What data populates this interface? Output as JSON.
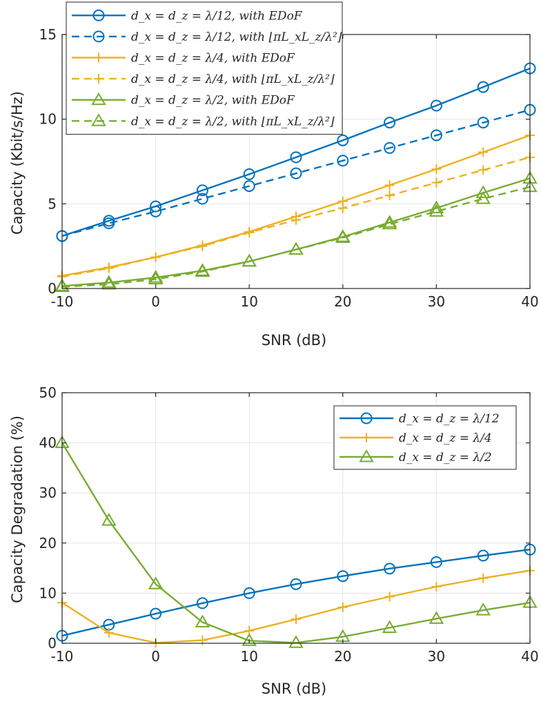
{
  "colors": {
    "blue": "#0072BD",
    "orange": "#EDB120",
    "green": "#77AC30",
    "grid": "#e6e6e6",
    "axis": "#262626"
  },
  "chart_data": [
    {
      "type": "line",
      "xlabel": "SNR (dB)",
      "ylabel": "Capacity (Kbit/s/Hz)",
      "xlim": [
        -10,
        40
      ],
      "ylim": [
        0,
        15
      ],
      "xticks": [
        -10,
        0,
        10,
        20,
        30,
        40
      ],
      "yticks": [
        0,
        5,
        10,
        15
      ],
      "grid": true,
      "legend": "top-left",
      "x": [
        -10,
        -5,
        0,
        5,
        10,
        15,
        20,
        25,
        30,
        35,
        40
      ],
      "series": [
        {
          "name": "d_x = d_z = λ/12, with EDoF",
          "color": "#0072BD",
          "marker": "circle",
          "dash": "solid",
          "values": [
            3.1,
            4.0,
            4.85,
            5.8,
            6.75,
            7.75,
            8.75,
            9.8,
            10.8,
            11.9,
            13.0
          ]
        },
        {
          "name": "d_x = d_z = λ/12, with ⌊πL_xL_z/λ²⌋",
          "color": "#0072BD",
          "marker": "circle",
          "dash": "dashed",
          "values": [
            3.1,
            3.85,
            4.55,
            5.3,
            6.05,
            6.8,
            7.55,
            8.3,
            9.05,
            9.8,
            10.55
          ]
        },
        {
          "name": "d_x = d_z = λ/4, with EDoF",
          "color": "#EDB120",
          "marker": "plus",
          "dash": "solid",
          "values": [
            0.75,
            1.25,
            1.85,
            2.55,
            3.35,
            4.25,
            5.15,
            6.1,
            7.05,
            8.05,
            9.05
          ]
        },
        {
          "name": "d_x = d_z = λ/4, with ⌊πL_xL_z/λ²⌋",
          "color": "#EDB120",
          "marker": "plus",
          "dash": "dashed",
          "values": [
            0.7,
            1.2,
            1.85,
            2.5,
            3.3,
            4.05,
            4.75,
            5.5,
            6.25,
            7.0,
            7.75
          ]
        },
        {
          "name": "d_x = d_z = λ/2, with EDoF",
          "color": "#77AC30",
          "marker": "triangle",
          "dash": "solid",
          "values": [
            0.15,
            0.35,
            0.65,
            1.05,
            1.6,
            2.3,
            3.05,
            3.9,
            4.75,
            5.65,
            6.5
          ]
        },
        {
          "name": "d_x = d_z = λ/2, with ⌊πL_xL_z/λ²⌋",
          "color": "#77AC30",
          "marker": "triangle",
          "dash": "dashed",
          "values": [
            0.1,
            0.25,
            0.55,
            1.0,
            1.6,
            2.3,
            3.0,
            3.8,
            4.55,
            5.3,
            6.0
          ]
        }
      ]
    },
    {
      "type": "line",
      "xlabel": "SNR (dB)",
      "ylabel": "Capacity Degradation (%)",
      "xlim": [
        -10,
        40
      ],
      "ylim": [
        0,
        50
      ],
      "xticks": [
        -10,
        0,
        10,
        20,
        30,
        40
      ],
      "yticks": [
        0,
        10,
        20,
        30,
        40,
        50
      ],
      "grid": true,
      "legend": "top-right",
      "x": [
        -10,
        -5,
        0,
        5,
        10,
        15,
        20,
        25,
        30,
        35,
        40
      ],
      "series": [
        {
          "name": "d_x = d_z = λ/12",
          "color": "#0072BD",
          "marker": "circle",
          "dash": "solid",
          "values": [
            1.5,
            3.7,
            5.9,
            8.0,
            10.0,
            11.8,
            13.4,
            14.9,
            16.2,
            17.5,
            18.7
          ]
        },
        {
          "name": "d_x = d_z = λ/4",
          "color": "#EDB120",
          "marker": "plus",
          "dash": "solid",
          "values": [
            8.1,
            2.1,
            0.1,
            0.6,
            2.5,
            4.8,
            7.2,
            9.3,
            11.3,
            13.0,
            14.5
          ]
        },
        {
          "name": "d_x = d_z = λ/2",
          "color": "#77AC30",
          "marker": "triangle",
          "dash": "solid",
          "values": [
            40.0,
            24.5,
            11.8,
            4.2,
            0.5,
            0.1,
            1.3,
            3.1,
            4.9,
            6.6,
            8.1
          ]
        }
      ]
    }
  ]
}
